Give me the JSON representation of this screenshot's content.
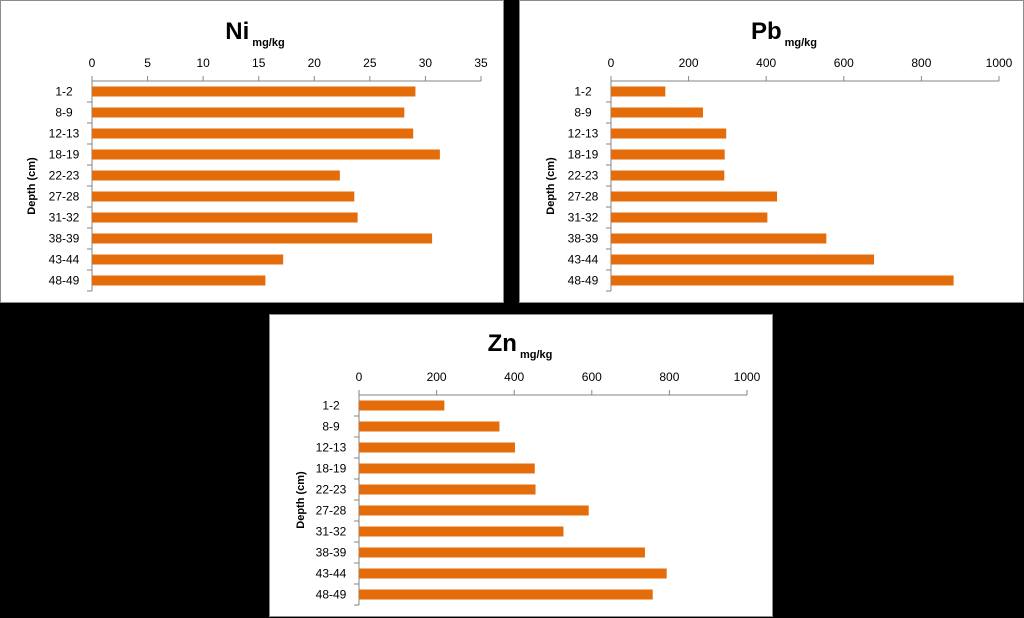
{
  "chart_data": [
    {
      "type": "bar",
      "orientation": "horizontal",
      "title": "Ni",
      "title_unit": "mg/kg",
      "ylabel": "Depth (cm)",
      "categories": [
        "1-2",
        "8-9",
        "12-13",
        "18-19",
        "22-23",
        "27-28",
        "31-32",
        "38-39",
        "43-44",
        "48-49"
      ],
      "values": [
        29.1,
        28.1,
        28.9,
        31.3,
        22.3,
        23.6,
        23.9,
        30.6,
        17.2,
        15.6
      ],
      "xlim": [
        0,
        35
      ],
      "xticks": [
        "0",
        "5",
        "10",
        "15",
        "20",
        "25",
        "30",
        "35"
      ],
      "bar_color": "#e46c0a",
      "grid": false,
      "axis_position": "top"
    },
    {
      "type": "bar",
      "orientation": "horizontal",
      "title": "Pb",
      "title_unit": "mg/kg",
      "ylabel": "Depth (cm)",
      "categories": [
        "1-2",
        "8-9",
        "12-13",
        "18-19",
        "22-23",
        "27-28",
        "31-32",
        "38-39",
        "43-44",
        "48-49"
      ],
      "values": [
        140,
        237,
        297,
        293,
        292,
        428,
        403,
        555,
        678,
        883
      ],
      "xlim": [
        0,
        1000
      ],
      "xticks": [
        "0",
        "200",
        "400",
        "600",
        "800",
        "1000"
      ],
      "bar_color": "#e46c0a",
      "grid": false,
      "axis_position": "top"
    },
    {
      "type": "bar",
      "orientation": "horizontal",
      "title": "Zn",
      "title_unit": "mg/kg",
      "ylabel": "Depth (cm)",
      "categories": [
        "1-2",
        "8-9",
        "12-13",
        "18-19",
        "22-23",
        "27-28",
        "31-32",
        "38-39",
        "43-44",
        "48-49"
      ],
      "values": [
        220,
        362,
        402,
        453,
        455,
        592,
        527,
        737,
        793,
        757
      ],
      "xlim": [
        0,
        1000
      ],
      "xticks": [
        "0",
        "200",
        "400",
        "600",
        "800",
        "1000"
      ],
      "bar_color": "#e46c0a",
      "grid": false,
      "axis_position": "top"
    }
  ]
}
